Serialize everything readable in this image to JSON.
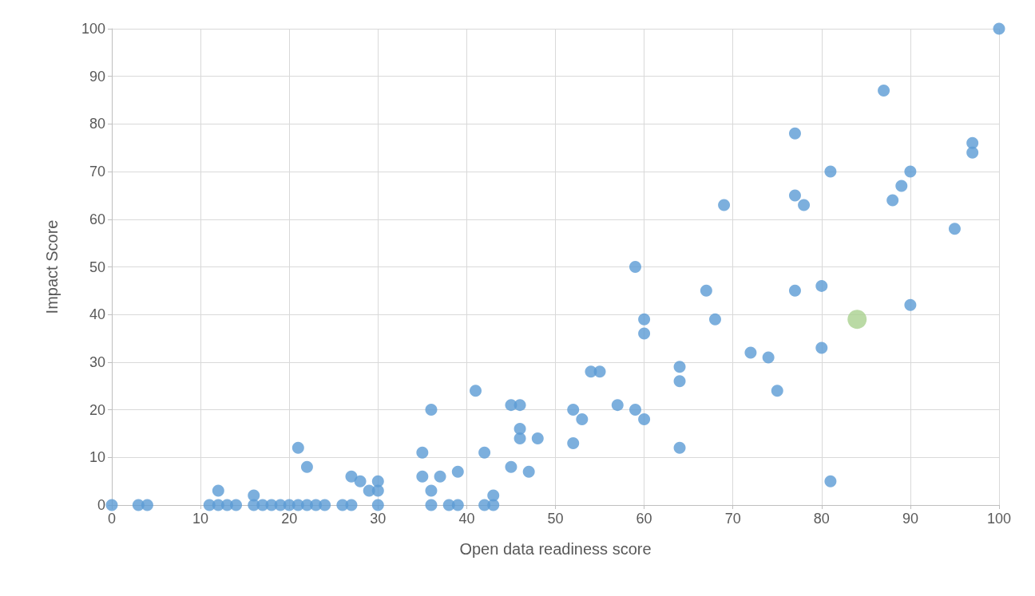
{
  "chart_data": {
    "type": "scatter",
    "xlabel": "Open data readiness score",
    "ylabel": "Impact Score",
    "xlim": [
      0,
      100
    ],
    "xticks": [
      0,
      10,
      20,
      30,
      40,
      50,
      60,
      70,
      80,
      90,
      100
    ],
    "ylim": [
      0,
      100
    ],
    "yticks": [
      0,
      10,
      20,
      30,
      40,
      50,
      60,
      70,
      80,
      90,
      100
    ],
    "grid": true,
    "marker": "circle",
    "series": [
      {
        "color": "#5b9bd5",
        "x": [
          0,
          3,
          4,
          11,
          12,
          13,
          14,
          16,
          17,
          18,
          19,
          20,
          21,
          22,
          23,
          24,
          26,
          27,
          30,
          36,
          38,
          39,
          42,
          43,
          12,
          16,
          21,
          22,
          27,
          28,
          29,
          30,
          30,
          35,
          35,
          36,
          36,
          37,
          39,
          41,
          42,
          43,
          45,
          46,
          45,
          46,
          46,
          47,
          48,
          52,
          52,
          53,
          54,
          55,
          57,
          59,
          59,
          60,
          60,
          60,
          64,
          64,
          64,
          67,
          68,
          69,
          72,
          74,
          75,
          77,
          77,
          77,
          78,
          80,
          80,
          81,
          81,
          87,
          88,
          89,
          90,
          90,
          95,
          97,
          97,
          100
        ],
        "values": [
          0,
          0,
          0,
          0,
          0,
          0,
          0,
          0,
          0,
          0,
          0,
          0,
          0,
          0,
          0,
          0,
          0,
          0,
          0,
          0,
          0,
          0,
          0,
          0,
          3,
          2,
          12,
          8,
          6,
          5,
          3,
          5,
          3,
          11,
          6,
          20,
          3,
          6,
          7,
          24,
          11,
          2,
          21,
          21,
          8,
          16,
          14,
          7,
          14,
          20,
          13,
          18,
          28,
          28,
          21,
          50,
          20,
          39,
          36,
          18,
          29,
          26,
          12,
          45,
          39,
          63,
          32,
          31,
          24,
          78,
          65,
          45,
          63,
          46,
          33,
          70,
          5,
          87,
          64,
          67,
          70,
          42,
          58,
          76,
          74,
          100
        ]
      },
      {
        "color": "#a9d18e",
        "x": [
          84
        ],
        "values": [
          39
        ]
      }
    ]
  }
}
